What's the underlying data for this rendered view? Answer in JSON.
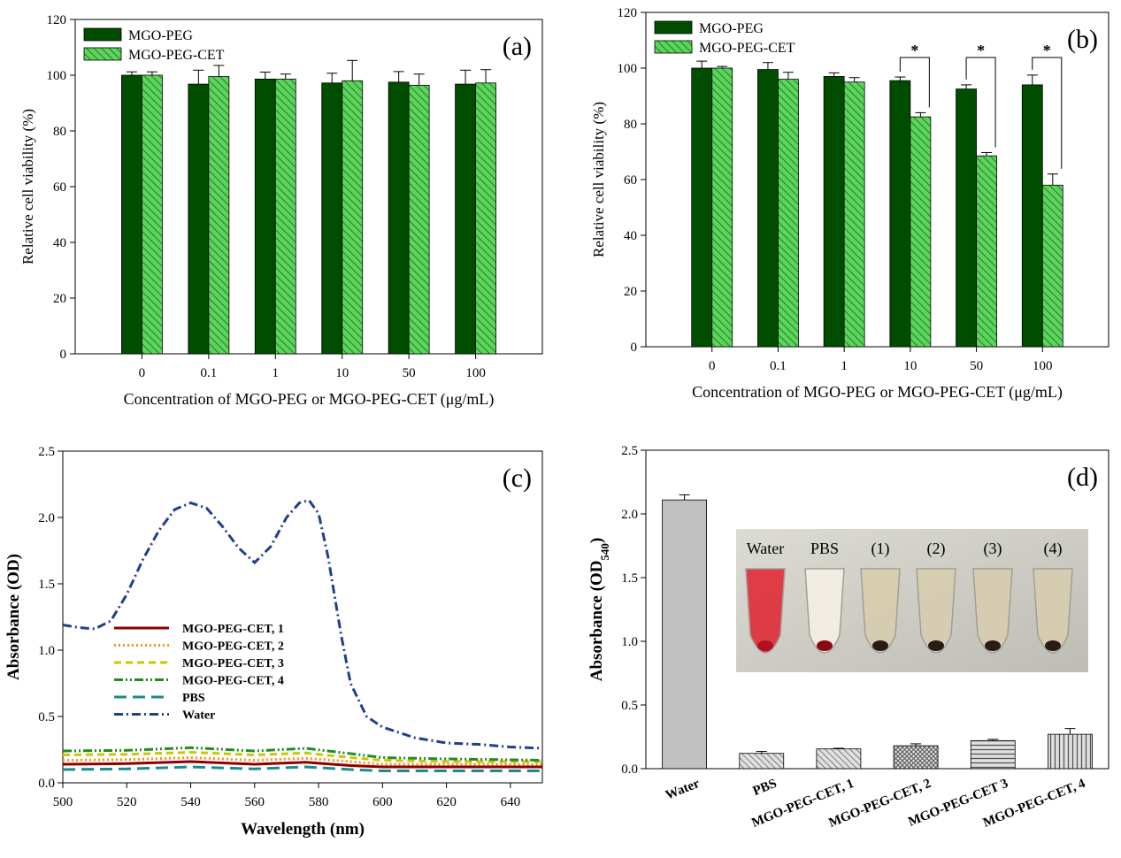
{
  "chart_data": [
    {
      "type": "bar",
      "panel_label": "(a)",
      "xlabel": "Concentration of MGO-PEG or MGO-PEG-CET (μg/mL)",
      "ylabel": "Relative cell viability (%)",
      "ylim": [
        0,
        120
      ],
      "yticks": [
        0,
        20,
        40,
        60,
        80,
        100,
        120
      ],
      "categories": [
        "0",
        "0.1",
        "1",
        "10",
        "50",
        "100"
      ],
      "legend_position": "top-left",
      "series": [
        {
          "name": "MGO-PEG",
          "values": [
            100,
            96.8,
            98.6,
            97.2,
            97.5,
            96.8
          ],
          "errors": [
            1.2,
            5,
            2.5,
            3.5,
            3.8,
            5
          ],
          "color": "#004d00",
          "pattern": "solid"
        },
        {
          "name": "MGO-PEG-CET",
          "values": [
            100,
            99.5,
            98.6,
            98,
            96.4,
            97.2
          ],
          "errors": [
            1.2,
            4,
            1.8,
            7.3,
            4,
            4.8
          ],
          "color": "#33cc33",
          "pattern": "hatch"
        }
      ]
    },
    {
      "type": "bar",
      "panel_label": "(b)",
      "xlabel": "Concentration of MGO-PEG or MGO-PEG-CET (μg/mL)",
      "ylabel": "Relative cell viability (%)",
      "ylim": [
        0,
        120
      ],
      "yticks": [
        0,
        20,
        40,
        60,
        80,
        100,
        120
      ],
      "categories": [
        "0",
        "0.1",
        "1",
        "10",
        "50",
        "100"
      ],
      "legend_position": "top-left",
      "significance": {
        "categories": [
          "10",
          "50",
          "100"
        ],
        "marker": "*"
      },
      "series": [
        {
          "name": "MGO-PEG",
          "values": [
            100,
            99.5,
            97,
            95.5,
            92.5,
            94
          ],
          "errors": [
            2.5,
            2.5,
            1.3,
            1.3,
            1.5,
            3.5
          ],
          "color": "#004d00",
          "pattern": "solid"
        },
        {
          "name": "MGO-PEG-CET",
          "values": [
            100,
            96,
            95,
            82.5,
            68.5,
            58
          ],
          "errors": [
            0.6,
            2.5,
            1.6,
            1.5,
            1.2,
            4
          ],
          "color": "#33cc33",
          "pattern": "hatch"
        }
      ]
    },
    {
      "type": "line",
      "panel_label": "(c)",
      "xlabel": "Wavelength (nm)",
      "ylabel": "Absorbance (OD)",
      "xlim": [
        500,
        650
      ],
      "ylim": [
        0,
        2.5
      ],
      "xticks": [
        500,
        520,
        540,
        560,
        580,
        600,
        620,
        640
      ],
      "yticks": [
        0.0,
        0.5,
        1.0,
        1.5,
        2.0,
        2.5
      ],
      "legend_position": "center-left",
      "series": [
        {
          "name": "MGO-PEG-CET, 1",
          "color": "#8b0000",
          "dash": "solid",
          "x": [
            500,
            520,
            540,
            560,
            576,
            590,
            600,
            620,
            650
          ],
          "y": [
            0.14,
            0.145,
            0.16,
            0.14,
            0.155,
            0.13,
            0.12,
            0.12,
            0.12
          ]
        },
        {
          "name": "MGO-PEG-CET, 2",
          "color": "#ff8c1a",
          "dash": "dotted",
          "x": [
            500,
            520,
            540,
            560,
            576,
            590,
            600,
            620,
            650
          ],
          "y": [
            0.17,
            0.175,
            0.19,
            0.17,
            0.185,
            0.16,
            0.14,
            0.14,
            0.14
          ]
        },
        {
          "name": "MGO-PEG-CET, 3",
          "color": "#c8c800",
          "dash": "dashed",
          "x": [
            500,
            520,
            540,
            560,
            576,
            590,
            600,
            620,
            650
          ],
          "y": [
            0.21,
            0.215,
            0.23,
            0.21,
            0.225,
            0.19,
            0.17,
            0.16,
            0.16
          ]
        },
        {
          "name": "MGO-PEG-CET, 4",
          "color": "#228b22",
          "dash": "dashdotdot",
          "x": [
            500,
            520,
            540,
            560,
            576,
            590,
            600,
            620,
            650
          ],
          "y": [
            0.24,
            0.245,
            0.265,
            0.24,
            0.26,
            0.22,
            0.19,
            0.18,
            0.17
          ]
        },
        {
          "name": "PBS",
          "color": "#1a8a8a",
          "dash": "longdash",
          "x": [
            500,
            520,
            540,
            560,
            576,
            590,
            600,
            620,
            650
          ],
          "y": [
            0.1,
            0.105,
            0.12,
            0.105,
            0.12,
            0.1,
            0.09,
            0.09,
            0.09
          ]
        },
        {
          "name": "Water",
          "color": "#1f3f8f",
          "dash": "dashdot",
          "x": [
            500,
            505,
            510,
            515,
            520,
            525,
            530,
            535,
            540,
            545,
            550,
            555,
            560,
            565,
            570,
            574,
            577,
            580,
            583,
            587,
            590,
            595,
            600,
            610,
            620,
            630,
            640,
            650
          ],
          "y": [
            1.19,
            1.17,
            1.16,
            1.22,
            1.42,
            1.68,
            1.9,
            2.06,
            2.11,
            2.07,
            1.93,
            1.77,
            1.66,
            1.78,
            2.0,
            2.11,
            2.13,
            2.03,
            1.7,
            1.12,
            0.75,
            0.5,
            0.42,
            0.34,
            0.3,
            0.29,
            0.27,
            0.26
          ]
        }
      ]
    },
    {
      "type": "bar",
      "panel_label": "(d)",
      "xlabel": "",
      "ylabel_main": "Absorbance (OD",
      "ylabel_sub": "540",
      "ylabel_close": ")",
      "ylim": [
        0,
        2.5
      ],
      "yticks": [
        0.0,
        0.5,
        1.0,
        1.5,
        2.0,
        2.5
      ],
      "categories": [
        "Water",
        "PBS",
        "MGO-PEG-CET, 1",
        "MGO-PEG-CET, 2",
        "MGO-PEG-CET 3",
        "MGO-PEG-CET, 4"
      ],
      "values": [
        2.11,
        0.12,
        0.155,
        0.18,
        0.22,
        0.27
      ],
      "errors": [
        0.04,
        0.015,
        0.005,
        0.015,
        0.01,
        0.045
      ],
      "patterns": [
        "solid",
        "diag",
        "diag",
        "cross",
        "horiz",
        "vert"
      ],
      "inset_photo_labels": [
        "Water",
        "PBS",
        "(1)",
        "(2)",
        "(3)",
        "(4)"
      ]
    }
  ]
}
